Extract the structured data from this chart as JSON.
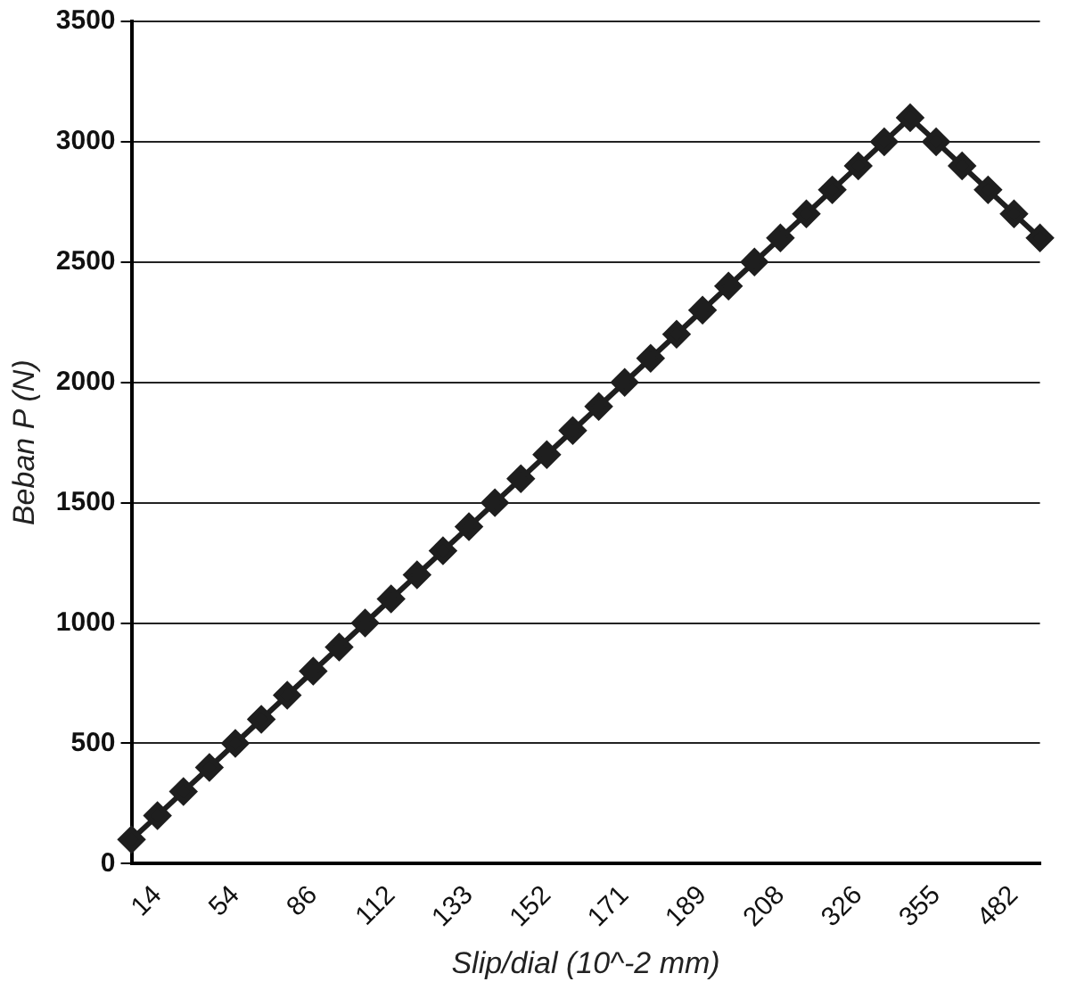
{
  "chart_data": {
    "type": "line",
    "xlabel": "Slip/dial (10^-2 mm)",
    "ylabel": "Beban P (N)",
    "categories": [
      null,
      "14",
      null,
      null,
      "54",
      null,
      null,
      "86",
      null,
      null,
      "112",
      null,
      null,
      "133",
      null,
      null,
      "152",
      null,
      null,
      "171",
      null,
      null,
      "189",
      null,
      null,
      "208",
      null,
      null,
      "326",
      null,
      null,
      "355",
      null,
      null,
      "482",
      null
    ],
    "series": [
      {
        "color": "#1e1e1e",
        "values": [
          100,
          200,
          300,
          400,
          500,
          600,
          700,
          800,
          900,
          1000,
          1100,
          1200,
          1300,
          1400,
          1500,
          1600,
          1700,
          1800,
          1900,
          2000,
          2100,
          2200,
          2300,
          2400,
          2500,
          2600,
          2700,
          2800,
          2900,
          3000,
          3100,
          3000,
          2900,
          2800,
          2700,
          2600
        ]
      }
    ],
    "ylim": [
      0,
      3500
    ],
    "yticks": [
      0,
      500,
      1000,
      1500,
      2000,
      2500,
      3000,
      3500
    ],
    "grid": "y",
    "legend": false,
    "marker": "diamond",
    "line_style": "solid"
  }
}
